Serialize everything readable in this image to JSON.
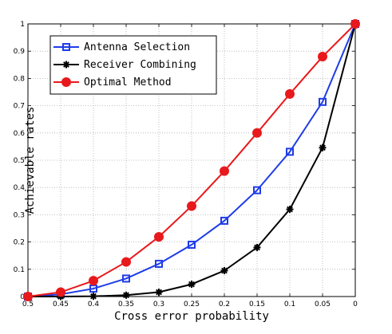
{
  "chart_data": {
    "type": "line",
    "title": "",
    "xlabel": "Cross error probability",
    "ylabel": "Achievable rates",
    "x": [
      0.5,
      0.45,
      0.4,
      0.35,
      0.3,
      0.25,
      0.2,
      0.15,
      0.1,
      0.05,
      0
    ],
    "x_tick_labels": [
      "0.5",
      "0.45",
      "0.4",
      "0.35",
      "0.3",
      "0.25",
      "0.2",
      "0.15",
      "0.1",
      "0.05",
      "0"
    ],
    "y_tick_labels": [
      "0",
      "0.1",
      "0.2",
      "0.3",
      "0.4",
      "0.5",
      "0.6",
      "0.7",
      "0.8",
      "0.9",
      "1"
    ],
    "xlim": [
      0.5,
      0
    ],
    "ylim": [
      0,
      1
    ],
    "x_reversed": true,
    "grid": true,
    "legend_position": "top-left",
    "series": [
      {
        "name": "Antenna Selection",
        "color": "#1f3ce8",
        "marker": "square",
        "values": [
          0,
          0.008,
          0.029,
          0.066,
          0.12,
          0.19,
          0.278,
          0.39,
          0.531,
          0.714,
          1.0
        ]
      },
      {
        "name": "Receiver Combining",
        "color": "#000000",
        "marker": "star",
        "values": [
          0,
          0.0,
          0.001,
          0.005,
          0.016,
          0.045,
          0.095,
          0.18,
          0.32,
          0.546,
          1.0
        ]
      },
      {
        "name": "Optimal Method",
        "color": "#e8191c",
        "marker": "circle",
        "values": [
          0,
          0.016,
          0.058,
          0.127,
          0.219,
          0.332,
          0.46,
          0.6,
          0.743,
          0.88,
          1.0
        ]
      }
    ]
  }
}
